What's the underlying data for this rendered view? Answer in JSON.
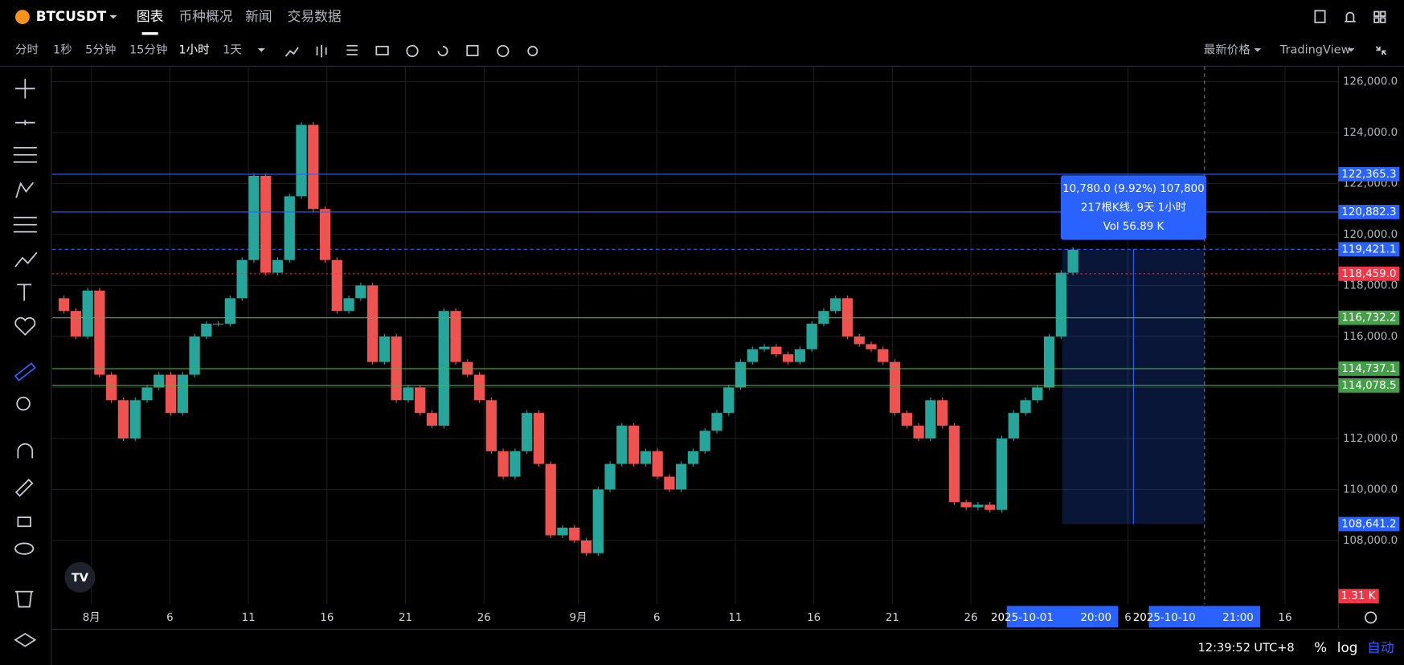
{
  "header": {
    "symbol": "BTCUSDT",
    "tabs": [
      "图表",
      "币种概况",
      "新闻",
      "交易数据"
    ]
  },
  "toolbar": {
    "intervals": [
      "分时",
      "1秒",
      "5分钟",
      "15分钟",
      "1小时",
      "1天"
    ],
    "active_interval": 4,
    "right": [
      "最新价格",
      "TradingView"
    ]
  },
  "chart_data": {
    "type": "candlestick",
    "values": [
      117500,
      117000,
      116000,
      117800,
      114500,
      113500,
      112000,
      113500,
      114000,
      114500,
      113000,
      114500,
      116000,
      116500,
      116500,
      117500,
      119000,
      122300,
      118500,
      119000,
      121500,
      124300,
      121000,
      119000,
      117000,
      117500,
      118000,
      115000,
      116000,
      113500,
      114000,
      113000,
      112500,
      117000,
      115000,
      114500,
      113500,
      111500,
      110500,
      111500,
      113000,
      111000,
      108200,
      108500,
      108000,
      107500,
      110000,
      111000,
      112500,
      111000,
      111500,
      110500,
      110000,
      111000,
      111500,
      112300,
      113000,
      114000,
      115000,
      115500,
      115600,
      115300,
      115000,
      115500,
      116500,
      117000,
      117500,
      116000,
      115700,
      115500,
      115000,
      113000,
      112500,
      112000,
      113500,
      112500,
      109500,
      109300,
      109400,
      109200,
      112000,
      113000,
      113500,
      114000,
      116000,
      118500,
      119400
    ],
    "xlim": [
      -2.5,
      79.4
    ],
    "xticks": [
      {
        "value": 0,
        "label": "8月"
      },
      {
        "value": 5,
        "label": "6"
      },
      {
        "value": 10,
        "label": "11"
      },
      {
        "value": 15,
        "label": "16"
      },
      {
        "value": 20,
        "label": "21"
      },
      {
        "value": 25,
        "label": "26"
      },
      {
        "value": 31,
        "label": "9月"
      },
      {
        "value": 36,
        "label": "6"
      },
      {
        "value": 41,
        "label": "11"
      },
      {
        "value": 46,
        "label": "16"
      },
      {
        "value": 51,
        "label": "21"
      },
      {
        "value": 56,
        "label": "26"
      },
      {
        "value": 66,
        "label": "6"
      },
      {
        "value": 76,
        "label": "16"
      }
    ],
    "ylim": [
      105500,
      126600
    ],
    "yticks": [
      {
        "value": 108000,
        "label": "108,000.0"
      },
      {
        "value": 110000,
        "label": "110,000.0"
      },
      {
        "value": 112000,
        "label": "112,000.0"
      },
      {
        "value": 114000,
        "label": "114,000.0"
      },
      {
        "value": 116000,
        "label": "116,000.0"
      },
      {
        "value": 118000,
        "label": "118,000.0"
      },
      {
        "value": 120000,
        "label": "120,000.0"
      },
      {
        "value": 122000,
        "label": "122,000.0"
      },
      {
        "value": 124000,
        "label": "124,000.0"
      },
      {
        "value": 126000,
        "label": "126,000.0"
      }
    ],
    "grid": true,
    "price_lines": {
      "values": [
        122365.3,
        120882.3,
        118459.0,
        116732.2,
        114737.1,
        114078.5
      ],
      "value_labels": [
        "122,365.3",
        "120,882.3",
        "118,459.0",
        "116,732.2",
        "114,737.1",
        "114,078.5"
      ],
      "colors": [
        "#2962ff",
        "#2962ff",
        "#f23645",
        "#4caf50",
        "#4caf50",
        "#4caf50"
      ]
    },
    "measure": {
      "high": 119421.1,
      "high_label": "119,421.1",
      "low": 108641.2,
      "low_label": "108,641.2",
      "x": [
        61.83,
        70.875
      ],
      "from": "2025-10-01",
      "from_time": "20:00",
      "to": "2025-10-10",
      "to_time": "21:00",
      "info": [
        "10,780.0 (9.92%) 107,800",
        "217根K线, 9天 1小时",
        "Vol 56.89 K"
      ]
    },
    "volume_label": "1.31 K"
  },
  "footer": {
    "time": "12:39:52 UTC+8",
    "buttons": [
      "%",
      "log",
      "自动"
    ]
  }
}
